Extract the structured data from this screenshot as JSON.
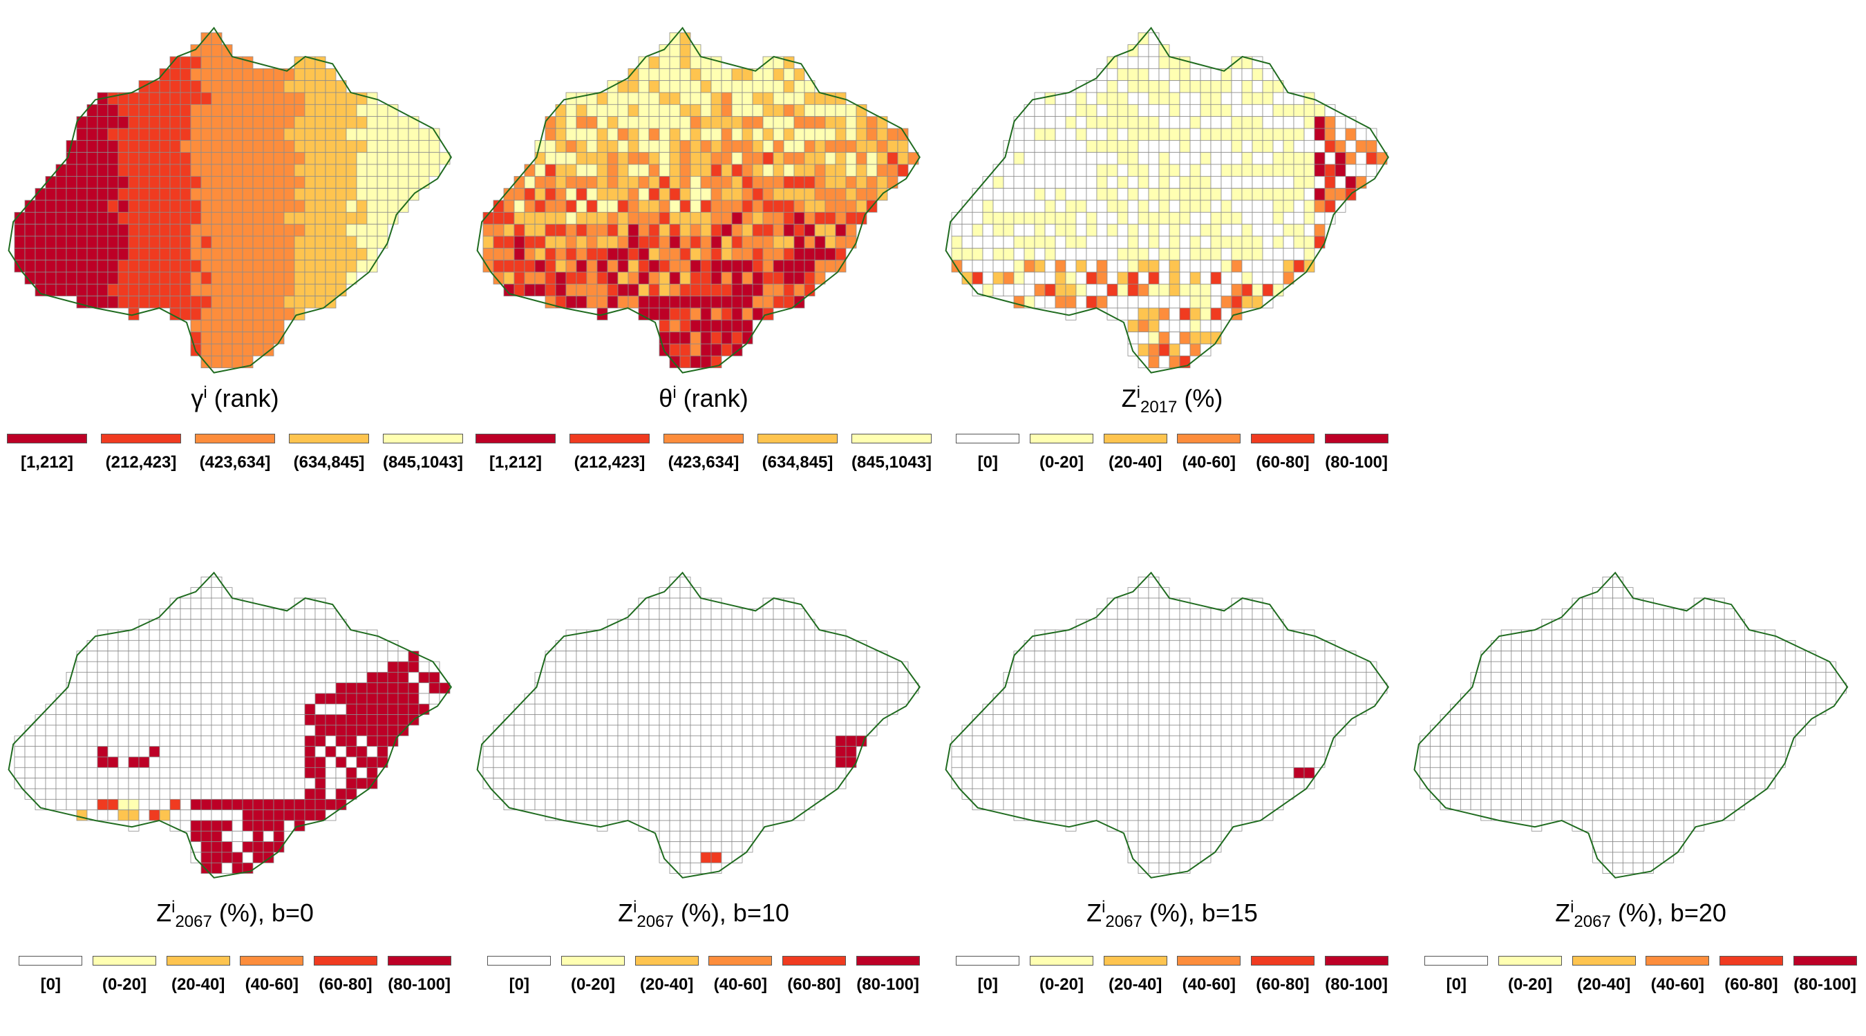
{
  "rank_legend": {
    "labels": [
      "[1,212]",
      "(212,423]",
      "(423,634]",
      "(634,845]",
      "(845,1043]"
    ],
    "colors": [
      "#bd0026",
      "#f03b20",
      "#fd8d3c",
      "#fec44f",
      "#ffffb2"
    ]
  },
  "pct_legend": {
    "labels": [
      "[0]",
      "(0-20]",
      "(20-40]",
      "(40-60]",
      "(60-80]",
      "(80-100]"
    ],
    "colors": [
      "#ffffff",
      "#ffffb2",
      "#fec44f",
      "#fd8d3c",
      "#f03b20",
      "#bd0026"
    ]
  },
  "panels": [
    {
      "id": "gamma",
      "symbol": "γ",
      "sup": "i",
      "sub": "",
      "suffix": " (rank)",
      "legend": "rank"
    },
    {
      "id": "theta",
      "symbol": "θ",
      "sup": "i",
      "sub": "",
      "suffix": " (rank)",
      "legend": "rank"
    },
    {
      "id": "z2017",
      "symbol": "Z",
      "sup": "i",
      "sub": "2017",
      "suffix": " (%)",
      "legend": "pct"
    },
    {
      "id": "z2067b0",
      "symbol": "Z",
      "sup": "i",
      "sub": "2067",
      "suffix": " (%), b=0",
      "legend": "pct"
    },
    {
      "id": "z2067b10",
      "symbol": "Z",
      "sup": "i",
      "sub": "2067",
      "suffix": " (%), b=10",
      "legend": "pct"
    },
    {
      "id": "z2067b15",
      "symbol": "Z",
      "sup": "i",
      "sub": "2067",
      "suffix": " (%), b=15",
      "legend": "pct"
    },
    {
      "id": "z2067b20",
      "symbol": "Z",
      "sup": "i",
      "sub": "2067",
      "suffix": " (%), b=20",
      "legend": "pct"
    }
  ],
  "colors": {
    "grid_line": "#8c8c8c",
    "border_line": "#1f6b1f"
  }
}
